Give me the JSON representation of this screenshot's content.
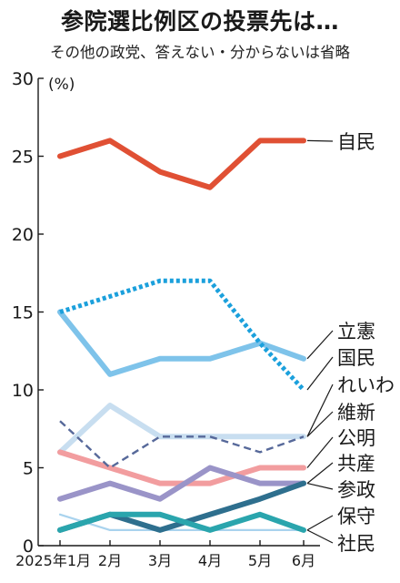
{
  "chart_data": {
    "type": "line",
    "title": "参院選比例区の投票先は…",
    "subtitle": "その他の政党、答えない・分からないは省略",
    "ylabel": "(%)",
    "ylim": [
      0,
      30
    ],
    "yticks": [
      0,
      5,
      10,
      15,
      20,
      25,
      30
    ],
    "x": [
      "2025年1月",
      "2月",
      "3月",
      "4月",
      "5月",
      "6月"
    ],
    "grid": false,
    "legend": "right-end labels",
    "series": [
      {
        "name": "自民",
        "values": [
          25,
          26,
          24,
          23,
          26,
          26
        ],
        "color": "#e05034",
        "style": "solid"
      },
      {
        "name": "立憲",
        "values": [
          15,
          11,
          12,
          12,
          13,
          12
        ],
        "color": "#7ec3ea",
        "style": "solid"
      },
      {
        "name": "国民",
        "values": [
          15,
          16,
          17,
          17,
          13,
          10
        ],
        "color": "#1ba0dc",
        "style": "dotted"
      },
      {
        "name": "れいわ",
        "values": [
          6,
          9,
          7,
          7,
          7,
          7
        ],
        "color": "#c8def0",
        "style": "solid"
      },
      {
        "name": "維新",
        "values": [
          8,
          5,
          7,
          7,
          6,
          7
        ],
        "color": "#57699a",
        "style": "dashed"
      },
      {
        "name": "公明",
        "values": [
          6,
          5,
          4,
          4,
          5,
          5
        ],
        "color": "#f29d9f",
        "style": "solid"
      },
      {
        "name": "共産",
        "values": [
          3,
          4,
          3,
          5,
          4,
          4
        ],
        "color": "#9a94c8",
        "style": "solid"
      },
      {
        "name": "参政",
        "values": [
          1,
          2,
          1,
          2,
          3,
          4
        ],
        "color": "#2e6f8e",
        "style": "solid"
      },
      {
        "name": "保守",
        "values": [
          1,
          2,
          2,
          1,
          2,
          1
        ],
        "color": "#2aa5ad",
        "style": "solid"
      },
      {
        "name": "社民",
        "values": [
          2,
          1,
          1,
          1,
          1,
          1
        ],
        "color": "#a9d3ee",
        "style": "thin"
      }
    ]
  }
}
